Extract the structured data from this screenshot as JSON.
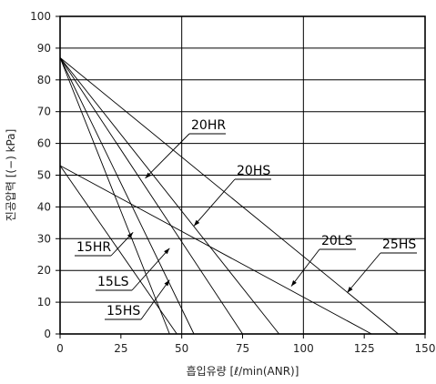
{
  "chart_data": {
    "type": "line",
    "title": "",
    "xlabel": "흡입유량 [ℓ/min(ANR)]",
    "ylabel": "진공압력 [(−) kPa]",
    "xlim": [
      0,
      150
    ],
    "ylim": [
      0,
      100
    ],
    "x_ticks": [
      0,
      25,
      50,
      75,
      100,
      125,
      150
    ],
    "y_ticks": [
      0,
      10,
      20,
      30,
      40,
      50,
      60,
      70,
      80,
      90,
      100
    ],
    "grid": true,
    "series": [
      {
        "name": "15HR",
        "x": [
          0,
          45
        ],
        "y": [
          87,
          0
        ]
      },
      {
        "name": "15HS",
        "x": [
          0,
          55
        ],
        "y": [
          87,
          0
        ]
      },
      {
        "name": "15LS",
        "x": [
          0,
          48
        ],
        "y": [
          53,
          0
        ]
      },
      {
        "name": "20HR",
        "x": [
          0,
          75
        ],
        "y": [
          87,
          0
        ]
      },
      {
        "name": "20HS",
        "x": [
          0,
          90
        ],
        "y": [
          87,
          0
        ]
      },
      {
        "name": "20LS",
        "x": [
          0,
          128
        ],
        "y": [
          53,
          0
        ]
      },
      {
        "name": "25HS",
        "x": [
          0,
          139
        ],
        "y": [
          87,
          0
        ]
      }
    ],
    "annotations": [
      {
        "label": "20HR",
        "target": [
          35,
          49
        ]
      },
      {
        "label": "20HS",
        "target": [
          55,
          34
        ]
      },
      {
        "label": "15HR",
        "target": [
          30,
          32
        ]
      },
      {
        "label": "15LS",
        "target": [
          45,
          27
        ]
      },
      {
        "label": "15HS",
        "target": [
          45,
          17
        ]
      },
      {
        "label": "20LS",
        "target": [
          95,
          15
        ]
      },
      {
        "label": "25HS",
        "target": [
          118,
          13
        ]
      }
    ]
  }
}
